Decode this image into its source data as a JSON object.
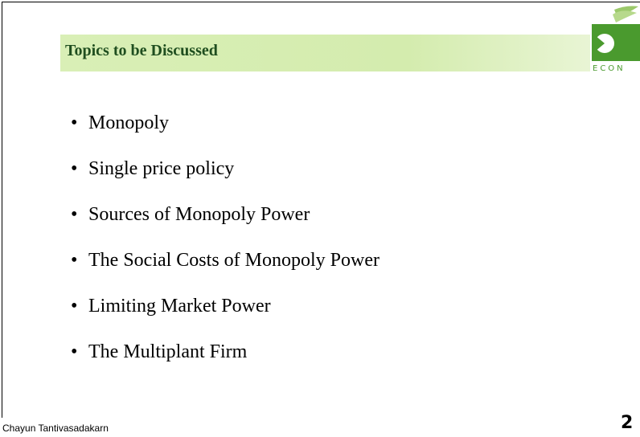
{
  "header": {
    "title": "Topics to be Discussed"
  },
  "logo": {
    "text": "ECON"
  },
  "bullets": [
    "Monopoly",
    "Single price policy",
    "Sources of Monopoly Power",
    "The Social Costs of Monopoly Power",
    "Limiting Market Power",
    "The Multiplant Firm"
  ],
  "footer": {
    "author": "Chayun Tantivasadakarn",
    "page": "2"
  }
}
